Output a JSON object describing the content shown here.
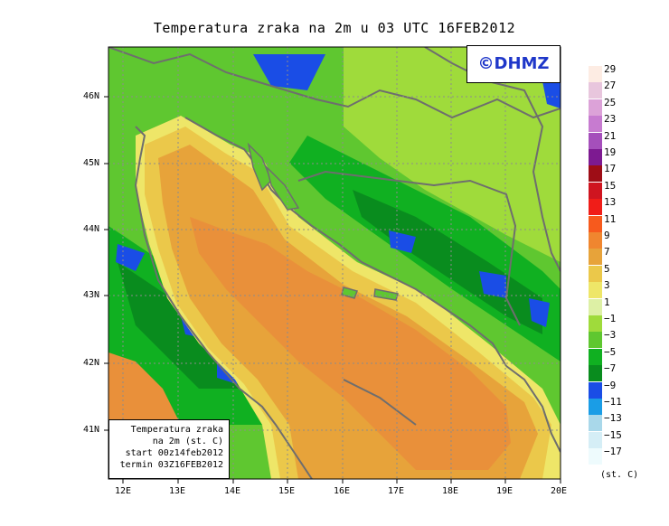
{
  "title": "Temperatura zraka na 2m u 03 UTC 16FEB2012",
  "logo": "©DHMZ",
  "info_box": {
    "line1": "Temperatura zraka",
    "line2": "na 2m (st. C)",
    "line3": "start 00z14feb2012",
    "line4": "termin 03Z16FEB2012"
  },
  "lat_labels": [
    "46N",
    "45N",
    "44N",
    "43N",
    "42N",
    "41N"
  ],
  "lon_labels": [
    "12E",
    "13E",
    "14E",
    "15E",
    "16E",
    "17E",
    "18E",
    "19E",
    "20E"
  ],
  "legend": {
    "units": "(st. C)",
    "ticks": [
      "29",
      "27",
      "25",
      "23",
      "21",
      "19",
      "17",
      "15",
      "13",
      "11",
      "9",
      "7",
      "5",
      "3",
      "1",
      "−1",
      "−3",
      "−5",
      "−7",
      "−9",
      "−11",
      "−13",
      "−15",
      "−17"
    ],
    "colors": [
      "#fdece3",
      "#e8c6dd",
      "#dca2d8",
      "#c77bd0",
      "#a54fbb",
      "#7d1a91",
      "#9e0d16",
      "#cf1520",
      "#f01d18",
      "#f75a1d",
      "#f0862f",
      "#e7a33a",
      "#ebc84a",
      "#eee668",
      "#ddf0a5",
      "#9fdb3b",
      "#5fc730",
      "#10b021",
      "#098c1e",
      "#1a4de6",
      "#1a9de6",
      "#a9d8ea",
      "#d5eef6",
      "#eefbfd"
    ]
  },
  "map_colors": {
    "sea_warm": "#e9903a",
    "sea_mid": "#e7a33a",
    "coast_warm": "#ebc84a",
    "coast_light": "#eee668",
    "land_green": "#5fc730",
    "land_light": "#9fdb3b",
    "land_dark": "#10b021",
    "land_darker": "#098c1e",
    "cold_blue": "#1a4de6",
    "border_line": "#6e6e6e"
  }
}
